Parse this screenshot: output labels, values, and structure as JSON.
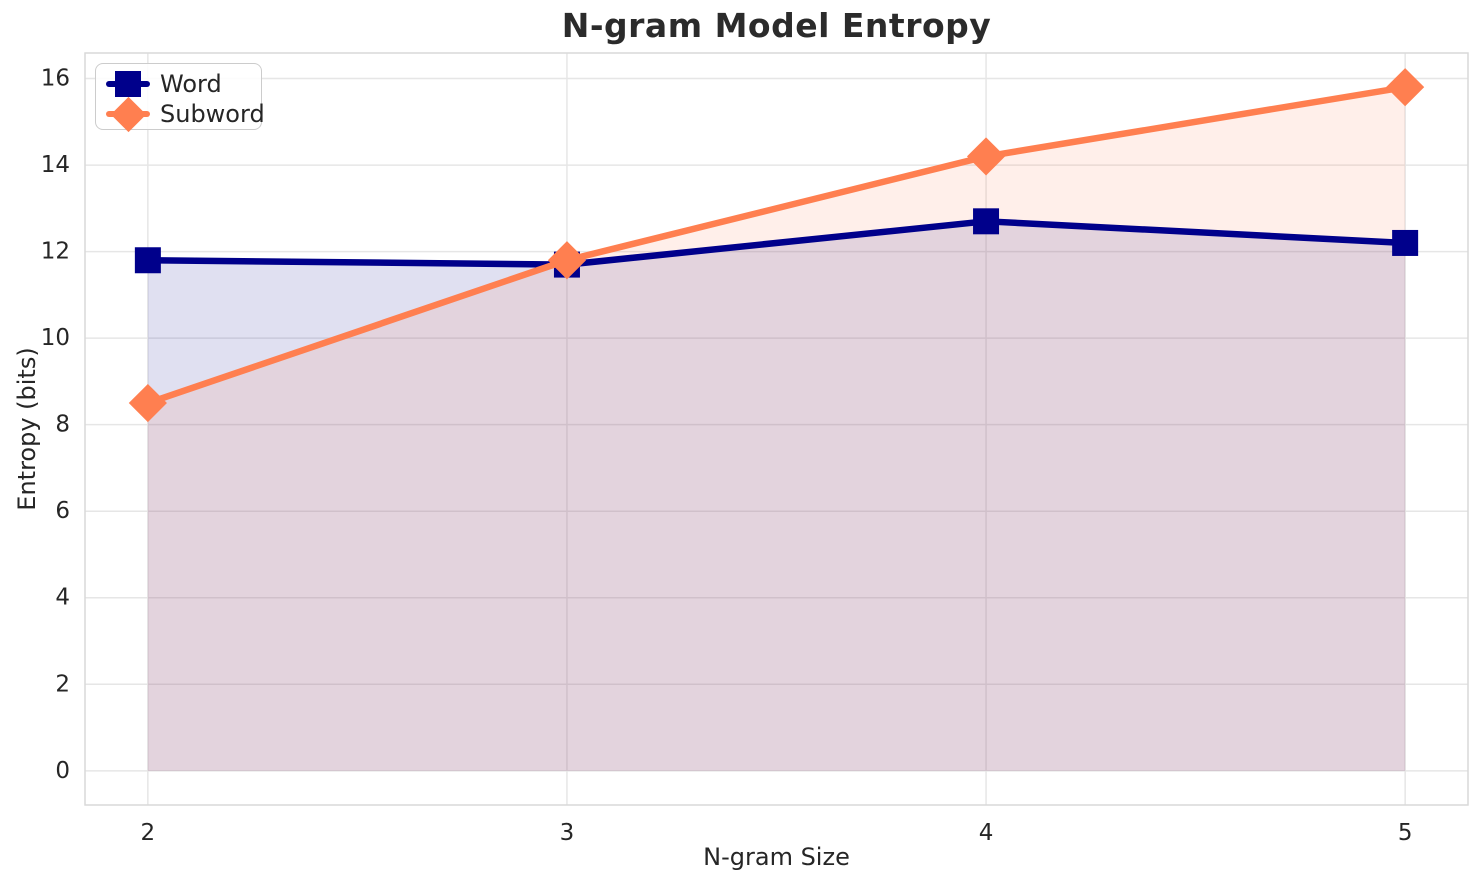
{
  "title": "N-gram Model Entropy",
  "colors": {
    "background": "#FFFFFF",
    "grid": "#E6E6E6",
    "spine": "#D9D9D9",
    "text": "#262626",
    "word_series": "#00008B",
    "subword_series": "#FF7F50"
  },
  "chart_data": {
    "type": "line",
    "title": "N-gram Model Entropy",
    "xlabel": "N-gram Size",
    "ylabel": "Entropy (bits)",
    "x": [
      2,
      3,
      4,
      5
    ],
    "series": [
      {
        "name": "Word",
        "values": [
          11.8,
          11.7,
          12.7,
          12.2
        ],
        "color": "#00008B",
        "marker": "square",
        "fill_alpha": 0.12
      },
      {
        "name": "Subword",
        "values": [
          8.5,
          11.8,
          14.2,
          15.8
        ],
        "color": "#FF7F50",
        "marker": "diamond",
        "fill_alpha": 0.12
      }
    ],
    "x_ticks": [
      2,
      3,
      4,
      5
    ],
    "y_ticks": [
      0,
      2,
      4,
      6,
      8,
      10,
      12,
      14,
      16
    ],
    "xlim": [
      1.85,
      5.15
    ],
    "ylim": [
      -0.79,
      16.59
    ],
    "grid": true,
    "area_fill_to": 0,
    "legend_position": "upper left",
    "legend_items": [
      "Word",
      "Subword"
    ]
  }
}
